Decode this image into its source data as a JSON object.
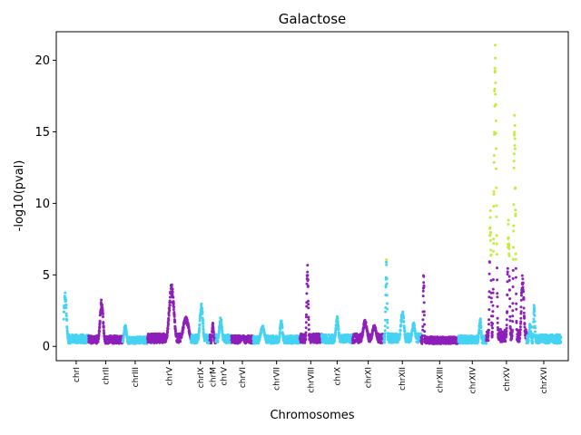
{
  "chart_data": {
    "type": "scatter",
    "title": "Galactose",
    "xlabel": "Chromosomes",
    "ylabel": "-log10(pval)",
    "ylim": [
      -1,
      22
    ],
    "yticks": [
      0,
      5,
      10,
      15,
      20
    ],
    "grid": false,
    "legend": "none",
    "colors": {
      "odd": "#8e1fba",
      "even": "#45d3f3",
      "significant": "#c1ef37"
    },
    "significance_threshold": 6.0,
    "chromosomes": [
      {
        "name": "chrI",
        "start": 0.0,
        "end": 4.0,
        "color": "even",
        "peaks": [
          {
            "p": 0.06,
            "h": 3.7,
            "w": 0.12
          }
        ],
        "base": 0.55
      },
      {
        "name": "chrII",
        "start": 4.0,
        "end": 9.5,
        "color": "odd",
        "peaks": [
          {
            "p": 0.38,
            "h": 3.2,
            "w": 0.1
          }
        ],
        "base": 0.5
      },
      {
        "name": "chrIII",
        "start": 9.5,
        "end": 13.5,
        "color": "even",
        "peaks": [
          {
            "p": 0.1,
            "h": 1.5,
            "w": 0.12
          }
        ],
        "base": 0.45
      },
      {
        "name": "chrV",
        "start": 13.5,
        "end": 20.5,
        "color": "odd",
        "peaks": [
          {
            "p": 0.55,
            "h": 4.2,
            "w": 0.12
          },
          {
            "p": 0.88,
            "h": 2.0,
            "w": 0.15
          }
        ],
        "base": 0.6
      },
      {
        "name": "chrIX",
        "start": 20.5,
        "end": 23.5,
        "color": "even",
        "peaks": [
          {
            "p": 0.55,
            "h": 2.9,
            "w": 0.18
          }
        ],
        "base": 0.55
      },
      {
        "name": "chrM",
        "start": 23.5,
        "end": 24.5,
        "color": "odd",
        "peaks": [
          {
            "p": 0.5,
            "h": 1.6,
            "w": 0.3
          }
        ],
        "base": 0.55
      },
      {
        "name": "chrV",
        "start": 24.5,
        "end": 27.0,
        "color": "even",
        "peaks": [
          {
            "p": 0.3,
            "h": 2.0,
            "w": 0.2
          }
        ],
        "base": 0.55
      },
      {
        "name": "chrVI",
        "start": 27.0,
        "end": 30.5,
        "color": "odd",
        "peaks": [
          {
            "p": 0.5,
            "h": 0.6,
            "w": 0.2
          }
        ],
        "base": 0.5
      },
      {
        "name": "chrVII",
        "start": 30.5,
        "end": 38.0,
        "color": "even",
        "peaks": [
          {
            "p": 0.2,
            "h": 1.4,
            "w": 0.1
          },
          {
            "p": 0.6,
            "h": 1.8,
            "w": 0.06
          }
        ],
        "base": 0.5
      },
      {
        "name": "chrVIII",
        "start": 38.0,
        "end": 41.5,
        "color": "odd",
        "peaks": [
          {
            "p": 0.35,
            "h": 5.6,
            "w": 0.08
          }
        ],
        "base": 0.6
      },
      {
        "name": "chrX",
        "start": 41.5,
        "end": 46.5,
        "color": "even",
        "peaks": [
          {
            "p": 0.5,
            "h": 2.0,
            "w": 0.1
          }
        ],
        "base": 0.55
      },
      {
        "name": "chrXI",
        "start": 46.5,
        "end": 51.5,
        "color": "odd",
        "peaks": [
          {
            "p": 0.4,
            "h": 1.8,
            "w": 0.15
          },
          {
            "p": 0.7,
            "h": 1.5,
            "w": 0.15
          }
        ],
        "base": 0.6
      },
      {
        "name": "chrXII",
        "start": 51.5,
        "end": 57.5,
        "color": "even",
        "peaks": [
          {
            "p": 0.07,
            "h": 6.0,
            "w": 0.04
          },
          {
            "p": 0.5,
            "h": 2.4,
            "w": 0.1
          },
          {
            "p": 0.8,
            "h": 1.6,
            "w": 0.1
          }
        ],
        "base": 0.6
      },
      {
        "name": "chrXIII",
        "start": 57.5,
        "end": 63.5,
        "color": "odd",
        "peaks": [
          {
            "p": 0.07,
            "h": 5.0,
            "w": 0.03
          }
        ],
        "base": 0.45
      },
      {
        "name": "chrXIV",
        "start": 63.5,
        "end": 68.0,
        "color": "even",
        "peaks": [
          {
            "p": 0.78,
            "h": 2.0,
            "w": 0.08
          }
        ],
        "base": 0.5
      },
      {
        "name": "chrXV",
        "start": 68.0,
        "end": 74.5,
        "color": "odd",
        "peaks": [
          {
            "p": 0.1,
            "h": 9.5,
            "w": 0.04
          },
          {
            "p": 0.22,
            "h": 20.5,
            "w": 0.06
          },
          {
            "p": 0.55,
            "h": 8.5,
            "w": 0.05
          },
          {
            "p": 0.7,
            "h": 15.8,
            "w": 0.05
          },
          {
            "p": 0.9,
            "h": 5.0,
            "w": 0.07
          }
        ],
        "base": 0.8
      },
      {
        "name": "chrXVI",
        "start": 74.5,
        "end": 80.0,
        "color": "even",
        "peaks": [
          {
            "p": 0.1,
            "h": 1.6,
            "w": 0.06
          },
          {
            "p": 0.22,
            "h": 3.0,
            "w": 0.04
          }
        ],
        "base": 0.55
      }
    ]
  }
}
